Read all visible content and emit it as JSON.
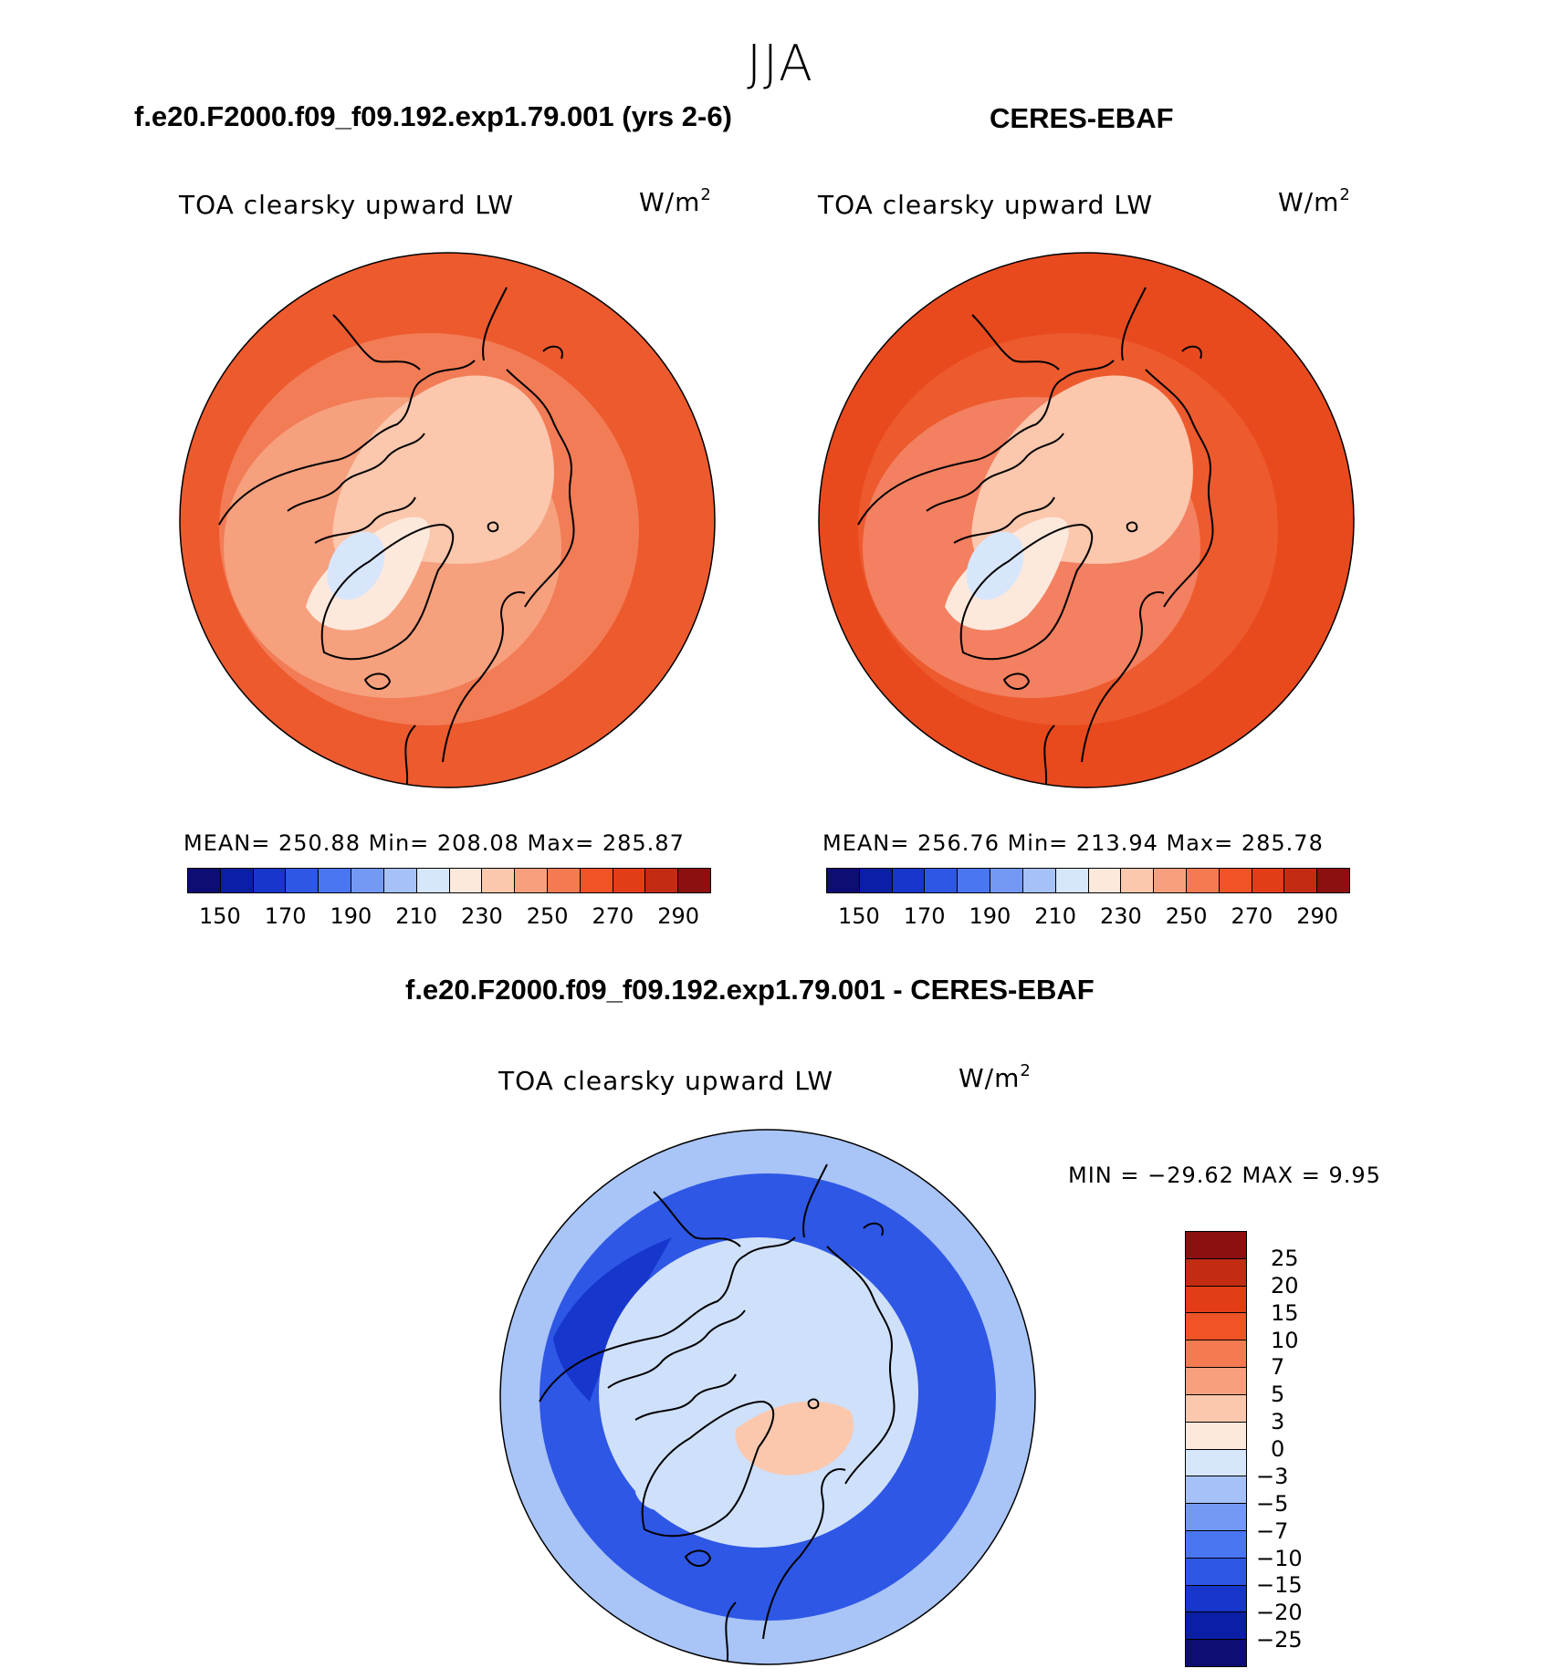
{
  "figure": {
    "season": "JJA",
    "model_title": "f.e20.F2000.f09_f09.192.exp1.79.001 (yrs 2-6)",
    "obs_title": "CERES-EBAF",
    "diff_title": "f.e20.F2000.f09_f09.192.exp1.79.001 - CERES-EBAF"
  },
  "chart_data": [
    {
      "type": "heatmap",
      "projection": "north polar stereographic",
      "variable_label": "TOA clearsky upward LW",
      "units_base": "W/m",
      "units_exp": "2",
      "stats_text": "MEAN= 250.88   Min= 208.08   Max= 285.87",
      "stats": {
        "mean": 250.88,
        "min": 208.08,
        "max": 285.87
      },
      "colorbar": {
        "orientation": "horizontal",
        "tick_labels": [
          "150",
          "170",
          "190",
          "210",
          "230",
          "250",
          "270",
          "290"
        ],
        "colors": [
          "#0d0d73",
          "#0b1ea6",
          "#1736cc",
          "#2e57e6",
          "#4a76f2",
          "#7399f5",
          "#a6c1f7",
          "#d6e6fb",
          "#fde9dc",
          "#fbc8ae",
          "#f8a07e",
          "#f47a52",
          "#ef5326",
          "#e23d17",
          "#c42b13",
          "#8c1010"
        ]
      },
      "map_palette": {
        "outer": "#ed5a2e",
        "mid": "#f27c56",
        "inner": "#f6a07e",
        "arctic": "#fbc7ad",
        "greenland_edge": "#fde8dc",
        "greenland_core": "#d8e6fb",
        "coast": "#000000"
      }
    },
    {
      "type": "heatmap",
      "projection": "north polar stereographic",
      "variable_label": "TOA clearsky upward LW",
      "units_base": "W/m",
      "units_exp": "2",
      "stats_text": "MEAN= 256.76   Min= 213.94   Max= 285.78",
      "stats": {
        "mean": 256.76,
        "min": 213.94,
        "max": 285.78
      },
      "colorbar": {
        "orientation": "horizontal",
        "tick_labels": [
          "150",
          "170",
          "190",
          "210",
          "230",
          "250",
          "270",
          "290"
        ],
        "colors": [
          "#0d0d73",
          "#0b1ea6",
          "#1736cc",
          "#2e57e6",
          "#4a76f2",
          "#7399f5",
          "#a6c1f7",
          "#d6e6fb",
          "#fde9dc",
          "#fbc8ae",
          "#f8a07e",
          "#f47a52",
          "#ef5326",
          "#e23d17",
          "#c42b13",
          "#8c1010"
        ]
      },
      "map_palette": {
        "outer": "#e84a1e",
        "mid": "#ed5a2e",
        "inner": "#f38060",
        "arctic": "#fbc7ad",
        "greenland_edge": "#fde8dc",
        "greenland_core": "#d8e6fb",
        "coast": "#000000"
      }
    },
    {
      "type": "heatmap",
      "projection": "north polar stereographic",
      "variable_label": "TOA clearsky upward LW",
      "units_base": "W/m",
      "units_exp": "2",
      "stats_text": "MIN = −29.62 MAX =    9.95",
      "stats": {
        "min": -29.62,
        "max": 9.95
      },
      "colorbar": {
        "orientation": "vertical",
        "tick_labels": [
          "25",
          "20",
          "15",
          "10",
          "7",
          "5",
          "3",
          "0",
          "−3",
          "−5",
          "−7",
          "−10",
          "−15",
          "−20",
          "−25"
        ],
        "colors": [
          "#8c1010",
          "#c42b13",
          "#e23d17",
          "#ef5326",
          "#f47a52",
          "#f8a07e",
          "#fbc8ae",
          "#fde9dc",
          "#d6e6fb",
          "#a6c1f7",
          "#7399f5",
          "#4a76f2",
          "#2e57e6",
          "#1736cc",
          "#0b1ea6",
          "#0d0d73"
        ]
      },
      "map_palette": {
        "outer": "#a9c4f6",
        "ring": "#2e57e6",
        "ring_dark": "#1736cc",
        "arctic": "#cfe0fa",
        "warm": "#fbc8ae",
        "coast": "#000000"
      }
    }
  ]
}
